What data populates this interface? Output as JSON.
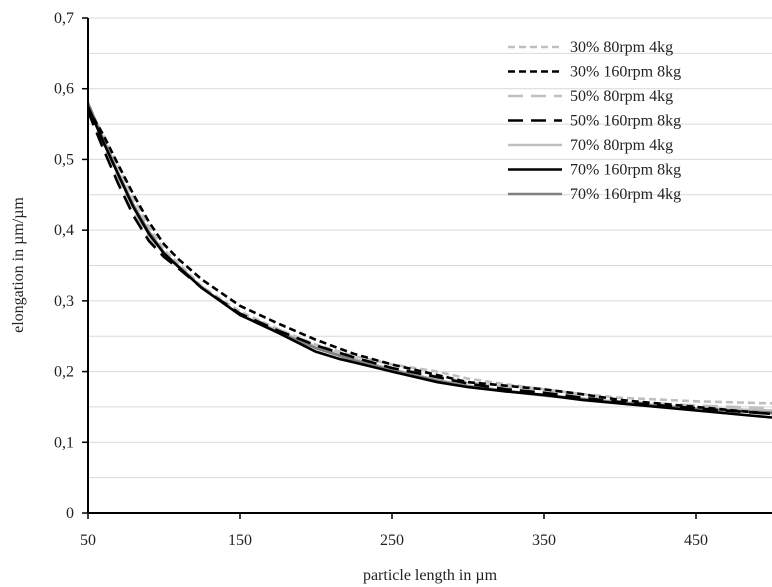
{
  "chart_data": {
    "type": "line",
    "title": "",
    "xlabel": "particle length in µm",
    "ylabel": "elongation in µm/µm",
    "xlim": [
      50,
      500
    ],
    "ylim": [
      0,
      0.7
    ],
    "xticks": [
      50,
      150,
      250,
      350,
      450
    ],
    "xtick_labels": [
      "50",
      "150",
      "250",
      "350",
      "450"
    ],
    "yticks": [
      0,
      0.1,
      0.2,
      0.3,
      0.4,
      0.5,
      0.6,
      0.7
    ],
    "ytick_labels": [
      "0",
      "0,1",
      "0,2",
      "0,3",
      "0,4",
      "0,5",
      "0,6",
      "0,7"
    ],
    "grid": "horizontal, every 0.05",
    "legend_position": "top-right",
    "series": [
      {
        "name": "30% 80rpm 4kg",
        "color": "#bfbfbf",
        "dash": "short-dash",
        "x": [
          50,
          60,
          70,
          80,
          90,
          100,
          110,
          125,
          150,
          175,
          200,
          225,
          250,
          280,
          300,
          325,
          350,
          375,
          400,
          450,
          500
        ],
        "y": [
          0.575,
          0.535,
          0.49,
          0.445,
          0.405,
          0.372,
          0.352,
          0.32,
          0.285,
          0.26,
          0.238,
          0.222,
          0.21,
          0.2,
          0.19,
          0.182,
          0.175,
          0.168,
          0.163,
          0.158,
          0.155
        ]
      },
      {
        "name": "30% 160rpm 8kg",
        "color": "#000000",
        "dash": "short-dash",
        "x": [
          50,
          60,
          70,
          80,
          90,
          100,
          110,
          125,
          150,
          175,
          200,
          225,
          250,
          280,
          300,
          325,
          350,
          375,
          400,
          450,
          500
        ],
        "y": [
          0.572,
          0.535,
          0.492,
          0.45,
          0.412,
          0.38,
          0.358,
          0.33,
          0.293,
          0.268,
          0.245,
          0.225,
          0.21,
          0.195,
          0.185,
          0.18,
          0.175,
          0.168,
          0.16,
          0.15,
          0.14
        ]
      },
      {
        "name": "50% 80rpm 4kg",
        "color": "#bfbfbf",
        "dash": "long-dash",
        "x": [
          50,
          60,
          70,
          80,
          90,
          100,
          110,
          125,
          150,
          175,
          200,
          225,
          250,
          280,
          300,
          325,
          350,
          375,
          400,
          450,
          500
        ],
        "y": [
          0.57,
          0.52,
          0.47,
          0.425,
          0.39,
          0.365,
          0.348,
          0.32,
          0.282,
          0.26,
          0.237,
          0.22,
          0.205,
          0.193,
          0.185,
          0.178,
          0.172,
          0.165,
          0.158,
          0.152,
          0.148
        ]
      },
      {
        "name": "50% 160rpm 8kg",
        "color": "#000000",
        "dash": "long-dash",
        "x": [
          50,
          60,
          70,
          80,
          90,
          100,
          110,
          125,
          150,
          175,
          200,
          225,
          250,
          280,
          300,
          325,
          350,
          375,
          400,
          450,
          500
        ],
        "y": [
          0.568,
          0.515,
          0.465,
          0.42,
          0.385,
          0.362,
          0.345,
          0.318,
          0.282,
          0.258,
          0.237,
          0.22,
          0.205,
          0.192,
          0.183,
          0.175,
          0.17,
          0.163,
          0.157,
          0.148,
          0.14
        ]
      },
      {
        "name": "70% 80rpm 4kg",
        "color": "#bfbfbf",
        "dash": "solid",
        "x": [
          50,
          60,
          70,
          80,
          90,
          100,
          110,
          125,
          150,
          175,
          200,
          225,
          250,
          280,
          300,
          325,
          350,
          375,
          400,
          450,
          500
        ],
        "y": [
          0.58,
          0.53,
          0.48,
          0.435,
          0.398,
          0.368,
          0.348,
          0.318,
          0.28,
          0.258,
          0.235,
          0.218,
          0.203,
          0.188,
          0.18,
          0.173,
          0.167,
          0.162,
          0.157,
          0.148,
          0.145
        ]
      },
      {
        "name": "70% 160rpm 8kg",
        "color": "#000000",
        "dash": "solid",
        "x": [
          50,
          60,
          70,
          80,
          90,
          100,
          110,
          125,
          150,
          175,
          200,
          215,
          225,
          250,
          280,
          300,
          325,
          350,
          375,
          400,
          450,
          500
        ],
        "y": [
          0.575,
          0.525,
          0.478,
          0.432,
          0.395,
          0.367,
          0.347,
          0.318,
          0.28,
          0.255,
          0.228,
          0.218,
          0.213,
          0.2,
          0.185,
          0.178,
          0.172,
          0.167,
          0.16,
          0.155,
          0.145,
          0.135
        ]
      },
      {
        "name": "70% 160rpm 4kg",
        "color": "#808080",
        "dash": "solid",
        "x": [
          50,
          60,
          70,
          80,
          90,
          100,
          110,
          125,
          150,
          175,
          200,
          225,
          250,
          280,
          300,
          325,
          350,
          375,
          400,
          450,
          500
        ],
        "y": [
          0.58,
          0.528,
          0.48,
          0.435,
          0.398,
          0.368,
          0.348,
          0.318,
          0.28,
          0.256,
          0.233,
          0.216,
          0.202,
          0.187,
          0.179,
          0.172,
          0.166,
          0.161,
          0.156,
          0.147,
          0.142
        ]
      }
    ]
  }
}
